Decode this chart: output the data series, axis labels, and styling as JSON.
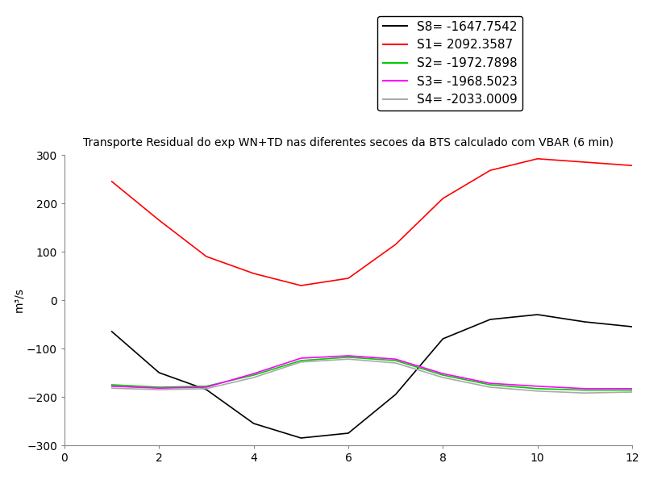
{
  "title": "Transporte Residual do exp WN+TD nas diferentes secoes da BTS calculado com VBAR (6 min)",
  "ylabel": "m³/s",
  "xlim": [
    0,
    12
  ],
  "ylim": [
    -300,
    300
  ],
  "xticks": [
    0,
    2,
    4,
    6,
    8,
    10,
    12
  ],
  "yticks": [
    -300,
    -200,
    -100,
    0,
    100,
    200,
    300
  ],
  "series": [
    {
      "label": "S8= -1647.7542",
      "color": "black",
      "x": [
        1,
        2,
        3,
        4,
        5,
        6,
        7,
        8,
        9,
        10,
        11,
        12
      ],
      "y": [
        -65,
        -150,
        -185,
        -255,
        -285,
        -275,
        -195,
        -80,
        -40,
        -30,
        -45,
        -55
      ]
    },
    {
      "label": "S1= 2092.3587",
      "color": "red",
      "x": [
        1,
        2,
        3,
        4,
        5,
        6,
        7,
        8,
        9,
        10,
        11,
        12
      ],
      "y": [
        245,
        165,
        90,
        55,
        30,
        45,
        115,
        210,
        268,
        292,
        285,
        278
      ]
    },
    {
      "label": "S2= -1972.7898",
      "color": "#00cc00",
      "x": [
        1,
        2,
        3,
        4,
        5,
        6,
        7,
        8,
        9,
        10,
        11,
        12
      ],
      "y": [
        -175,
        -180,
        -178,
        -155,
        -125,
        -118,
        -125,
        -155,
        -175,
        -183,
        -186,
        -186
      ]
    },
    {
      "label": "S3= -1968.5023",
      "color": "magenta",
      "x": [
        1,
        2,
        3,
        4,
        5,
        6,
        7,
        8,
        9,
        10,
        11,
        12
      ],
      "y": [
        -178,
        -182,
        -180,
        -152,
        -120,
        -115,
        -122,
        -152,
        -172,
        -178,
        -183,
        -183
      ]
    },
    {
      "label": "S4= -2033.0009",
      "color": "#aaaaaa",
      "x": [
        1,
        2,
        3,
        4,
        5,
        6,
        7,
        8,
        9,
        10,
        11,
        12
      ],
      "y": [
        -182,
        -185,
        -183,
        -160,
        -128,
        -122,
        -130,
        -160,
        -180,
        -188,
        -192,
        -190
      ]
    }
  ],
  "background_color": "white",
  "title_fontsize": 10,
  "axis_fontsize": 10,
  "legend_fontsize": 11
}
